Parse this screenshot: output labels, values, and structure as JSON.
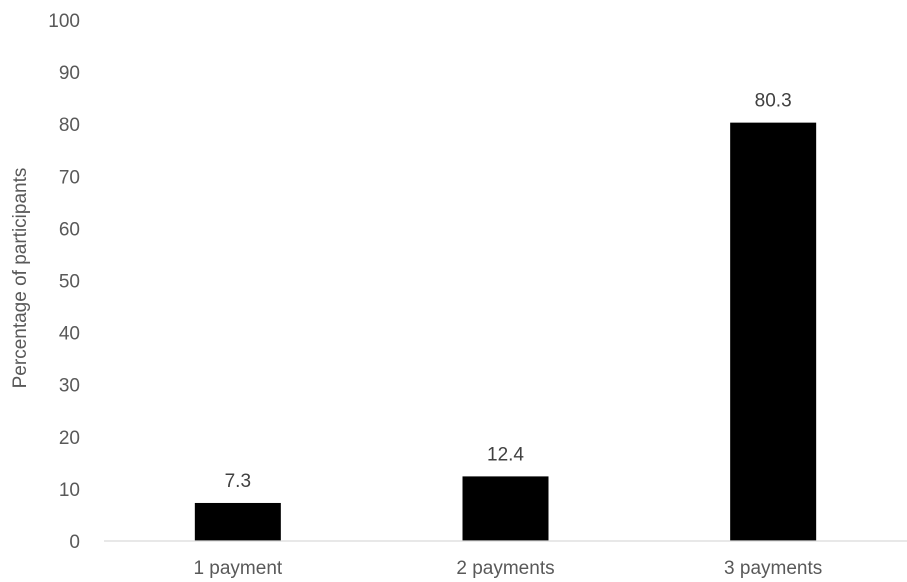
{
  "chart_data": {
    "type": "bar",
    "categories": [
      "1 payment",
      "2 payments",
      "3 payments"
    ],
    "values": [
      7.3,
      12.4,
      80.3
    ],
    "data_labels": [
      "7.3",
      "12.4",
      "80.3"
    ],
    "title": "",
    "xlabel": "",
    "ylabel": "Percentage of participants",
    "ylim": [
      0,
      100
    ],
    "yticks": [
      0,
      10,
      20,
      30,
      40,
      50,
      60,
      70,
      80,
      90,
      100
    ],
    "grid": false,
    "legend": "none",
    "colors": {
      "bar": "#000000",
      "axis": "#d9d9d9",
      "text": "#595959"
    }
  }
}
